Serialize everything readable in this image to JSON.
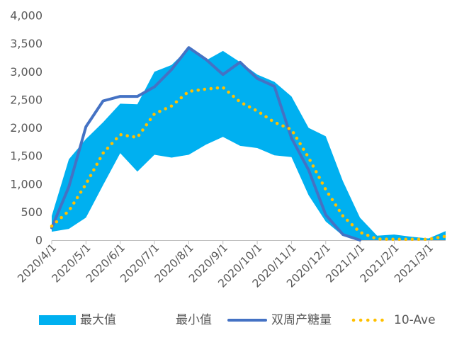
{
  "chart_data": {
    "type": "area",
    "x": [
      "2020/4/1",
      "2020/4/16",
      "2020/5/1",
      "2020/5/16",
      "2020/6/1",
      "2020/6/16",
      "2020/7/1",
      "2020/7/16",
      "2020/8/1",
      "2020/8/16",
      "2020/9/1",
      "2020/9/16",
      "2020/10/1",
      "2020/10/16",
      "2020/11/1",
      "2020/11/16",
      "2020/12/1",
      "2020/12/16",
      "2021/1/1",
      "2021/1/16",
      "2021/2/1",
      "2021/2/16",
      "2021/3/1",
      "2021/3/16"
    ],
    "xticks": [
      "2020/4/1",
      "2020/5/1",
      "2020/6/1",
      "2020/7/1",
      "2020/8/1",
      "2020/9/1",
      "2020/10/1",
      "2020/11/1",
      "2020/12/1",
      "2021/1/1",
      "2021/2/1",
      "2021/3/1"
    ],
    "yticks": [
      "0",
      "500",
      "1,000",
      "1,500",
      "2,000",
      "2,500",
      "3,000",
      "3,500",
      "4,000"
    ],
    "ylim": [
      0,
      4000
    ],
    "grid": false,
    "legend": "bottom",
    "series": [
      {
        "name": "最大值",
        "type": "area",
        "color": "#00B0F0",
        "values": [
          430,
          1440,
          1800,
          2100,
          2430,
          2420,
          3000,
          3120,
          3420,
          3200,
          3370,
          3170,
          2950,
          2820,
          2560,
          2000,
          1850,
          1050,
          400,
          80,
          100,
          60,
          30,
          160
        ]
      },
      {
        "name": "最小值",
        "type": "area",
        "color": "#FFFFFF",
        "values": [
          150,
          200,
          400,
          980,
          1550,
          1220,
          1520,
          1470,
          1520,
          1700,
          1840,
          1680,
          1640,
          1510,
          1480,
          800,
          330,
          80,
          0,
          0,
          0,
          0,
          0,
          0
        ]
      },
      {
        "name": "双周产糖量",
        "type": "line",
        "style": "solid",
        "color": "#4472C4",
        "values": [
          220,
          950,
          2020,
          2480,
          2560,
          2560,
          2730,
          3040,
          3430,
          3220,
          2950,
          3170,
          2880,
          2740,
          1820,
          1250,
          450,
          100,
          0,
          null,
          null,
          null,
          null,
          null
        ]
      },
      {
        "name": "10-Ave",
        "type": "line",
        "style": "dotted",
        "color": "#FFC000",
        "values": [
          250,
          520,
          1000,
          1550,
          1880,
          1830,
          2250,
          2390,
          2650,
          2690,
          2720,
          2460,
          2300,
          2100,
          1970,
          1470,
          900,
          430,
          140,
          20,
          15,
          15,
          15,
          70
        ]
      }
    ]
  }
}
